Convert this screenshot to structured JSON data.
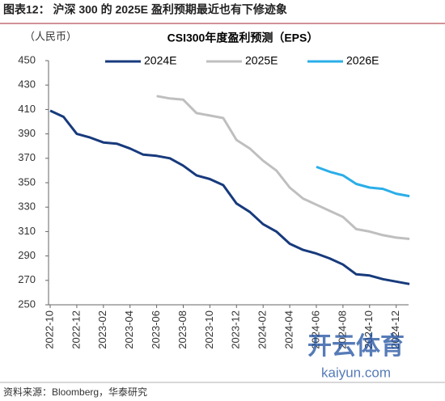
{
  "header": {
    "title": "图表12： 沪深 300 的 2025E 盈利预期最近也有下修迹象"
  },
  "chart_data": {
    "type": "line",
    "title": "CSI300年度盈利预测（EPS）",
    "y_label": "（人民币）",
    "x": [
      "2022-10",
      "2022-11",
      "2022-12",
      "2023-01",
      "2023-02",
      "2023-03",
      "2023-04",
      "2023-05",
      "2023-06",
      "2023-07",
      "2023-08",
      "2023-09",
      "2023-10",
      "2023-11",
      "2023-12",
      "2024-01",
      "2024-02",
      "2024-03",
      "2024-04",
      "2024-05",
      "2024-06",
      "2024-07",
      "2024-08",
      "2024-09",
      "2024-10",
      "2024-11",
      "2024-12",
      "2025-01"
    ],
    "xticks": [
      "2022-10",
      "2022-12",
      "2023-02",
      "2023-04",
      "2023-06",
      "2023-08",
      "2023-10",
      "2023-12",
      "2024-02",
      "2024-04",
      "2024-06",
      "2024-08",
      "2024-10",
      "2024-12"
    ],
    "series": [
      {
        "name": "2024E",
        "color": "#173a7c",
        "values": [
          409,
          404,
          390,
          387,
          383,
          382,
          378,
          373,
          372,
          370,
          364,
          356,
          353,
          348,
          333,
          326,
          316,
          310,
          300,
          295,
          292,
          288,
          283,
          275,
          274,
          271,
          269,
          267
        ]
      },
      {
        "name": "2025E",
        "color": "#bfbfbf",
        "values": [
          null,
          null,
          null,
          null,
          null,
          null,
          null,
          null,
          421,
          419,
          418,
          407,
          405,
          403,
          385,
          378,
          368,
          360,
          346,
          337,
          332,
          327,
          322,
          312,
          310,
          307,
          305,
          304
        ]
      },
      {
        "name": "2026E",
        "color": "#2aaee8",
        "values": [
          null,
          null,
          null,
          null,
          null,
          null,
          null,
          null,
          null,
          null,
          null,
          null,
          null,
          null,
          null,
          null,
          null,
          null,
          null,
          null,
          363,
          359,
          356,
          349,
          346,
          345,
          341,
          339
        ]
      }
    ],
    "ylim": [
      250,
      450
    ],
    "yticks": [
      250,
      270,
      290,
      310,
      330,
      350,
      370,
      390,
      410,
      430,
      450
    ],
    "legend": "top"
  },
  "watermark": {
    "brand": "开云体育",
    "site": "kaiyun.com"
  },
  "footer": {
    "source": "资料来源：Bloomberg，华泰研究"
  }
}
